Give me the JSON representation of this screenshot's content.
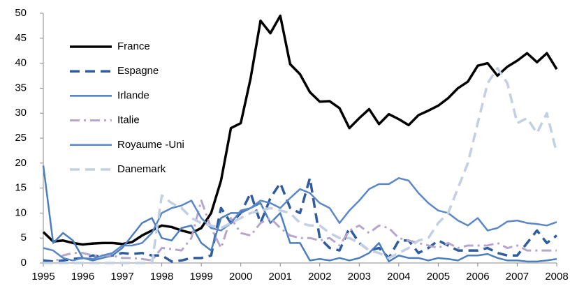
{
  "chart_data": {
    "type": "line",
    "x": [
      1995,
      1995.25,
      1995.5,
      1995.75,
      1996,
      1996.25,
      1996.5,
      1996.75,
      1997,
      1997.25,
      1997.5,
      1997.75,
      1998,
      1998.25,
      1998.5,
      1998.75,
      1999,
      1999.25,
      1999.5,
      1999.75,
      2000,
      2000.25,
      2000.5,
      2000.75,
      2001,
      2001.25,
      2001.5,
      2001.75,
      2002,
      2002.25,
      2002.5,
      2002.75,
      2003,
      2003.25,
      2003.5,
      2003.75,
      2004,
      2004.25,
      2004.5,
      2004.75,
      2005,
      2005.25,
      2005.5,
      2005.75,
      2006,
      2006.25,
      2006.5,
      2006.75,
      2007,
      2007.25,
      2007.5,
      2007.75,
      2008
    ],
    "series": [
      {
        "name": "France",
        "color": "#000000",
        "linestyle": "solid",
        "linewidth": 3.5,
        "values": [
          6.2,
          4.3,
          4.5,
          4.0,
          3.7,
          3.9,
          4.0,
          4.0,
          3.8,
          4.2,
          5.5,
          6.5,
          7.5,
          7.2,
          6.5,
          6.0,
          7.0,
          10.0,
          16.5,
          27.0,
          28.0,
          37.0,
          48.5,
          46.0,
          49.5,
          39.8,
          37.8,
          34.2,
          32.3,
          32.4,
          31.0,
          27.0,
          29.0,
          30.8,
          27.8,
          29.8,
          28.8,
          27.6,
          29.6,
          30.5,
          31.5,
          33.0,
          35.0,
          36.3,
          39.5,
          40.0,
          37.5,
          39.3,
          40.5,
          42.0,
          40.2,
          42.0,
          38.8
        ]
      },
      {
        "name": "Espagne",
        "color": "#2e5c9e",
        "linestyle": "dashed",
        "linewidth": 3.5,
        "values": [
          0.5,
          0.3,
          0.5,
          0.8,
          1,
          1.5,
          1.2,
          1.5,
          2,
          1.8,
          2,
          1.5,
          1.5,
          0.3,
          0.5,
          1,
          1,
          1.5,
          11,
          8,
          10,
          14,
          8,
          13,
          16,
          11,
          10,
          17,
          5,
          3,
          2.5,
          7,
          4,
          2.5,
          3,
          1,
          4.5,
          4.5,
          2,
          3,
          4.5,
          3.5,
          2.5,
          2.5,
          2.5,
          3,
          2,
          1.5,
          1.5,
          4,
          6.5,
          4,
          5.5
        ]
      },
      {
        "name": "Irlande",
        "color": "#4a7ebf",
        "linestyle": "solid",
        "linewidth": 2.5,
        "values": [
          19.5,
          4,
          6,
          4.5,
          1,
          0.5,
          1,
          1.5,
          3,
          5.5,
          8,
          9,
          5,
          4.5,
          7,
          7.5,
          4,
          2.5,
          9,
          10,
          10,
          11,
          12,
          8,
          10,
          4,
          4,
          0.5,
          0.8,
          0.5,
          1,
          0.5,
          1,
          2,
          4,
          0.3,
          1.5,
          1,
          1,
          0.5,
          1,
          0.8,
          0.5,
          1.5,
          1.5,
          1.8,
          1,
          0.5,
          0.5,
          0.3,
          0.3,
          0.5,
          0.8
        ]
      },
      {
        "name": "Italie",
        "color": "#b7a6cc",
        "linestyle": "dashdot",
        "linewidth": 3,
        "values": [
          0,
          0,
          1.5,
          2,
          2,
          1.5,
          1.5,
          1.5,
          1,
          1,
          0.8,
          0.5,
          3,
          2.8,
          2.5,
          5,
          12.5,
          7,
          3,
          9,
          6,
          5.5,
          8,
          9,
          7,
          5.5,
          5,
          5,
          4.5,
          5,
          3.5,
          6.5,
          7.5,
          6,
          7.5,
          7,
          5,
          4.5,
          4,
          3.5,
          3,
          4,
          3,
          3.5,
          3.5,
          3.5,
          4,
          3,
          3.5,
          2.5,
          2.5,
          2.5,
          2.5
        ]
      },
      {
        "name": "Royaume -Uni",
        "color": "#5b87c8",
        "linestyle": "solid",
        "linewidth": 2.5,
        "values": [
          3,
          2.5,
          1,
          0.5,
          1,
          0.8,
          1.5,
          2,
          3.5,
          3.5,
          4,
          6,
          10,
          11,
          11.5,
          12.5,
          9,
          7,
          6.5,
          8,
          10.5,
          11,
          12.5,
          12,
          11,
          13,
          14.8,
          14,
          12,
          11,
          8,
          10.5,
          12.5,
          14.8,
          15.8,
          15.8,
          17,
          16.5,
          14,
          12,
          10.5,
          10,
          8.5,
          7.5,
          9,
          6.5,
          7,
          8.3,
          8.5,
          8,
          7.8,
          7.5,
          8.2
        ]
      },
      {
        "name": "Danemark",
        "color": "#c3cfe3",
        "linestyle": "dashed",
        "linewidth": 3.5,
        "values": [
          0,
          0,
          0,
          0,
          0,
          0,
          0,
          0,
          0,
          0,
          0,
          0,
          13.5,
          12,
          11,
          9,
          8,
          7.5,
          7,
          8,
          9,
          10,
          10.5,
          11,
          10.5,
          10,
          8,
          7.5,
          7.5,
          6,
          5,
          5,
          4,
          2.5,
          2,
          1,
          2,
          3,
          4.5,
          5,
          8,
          10,
          15,
          20,
          28,
          36,
          39,
          36,
          28,
          29,
          26,
          30,
          22
        ]
      }
    ],
    "xlim": [
      1995,
      2008
    ],
    "xticks": [
      1995,
      1996,
      1997,
      1998,
      1999,
      2000,
      2001,
      2002,
      2003,
      2004,
      2005,
      2006,
      2007,
      2008
    ],
    "ylim": [
      0,
      50
    ],
    "yticks": [
      0,
      5,
      10,
      15,
      20,
      25,
      30,
      35,
      40,
      45,
      50
    ],
    "grid": false,
    "legend": "upper left"
  }
}
